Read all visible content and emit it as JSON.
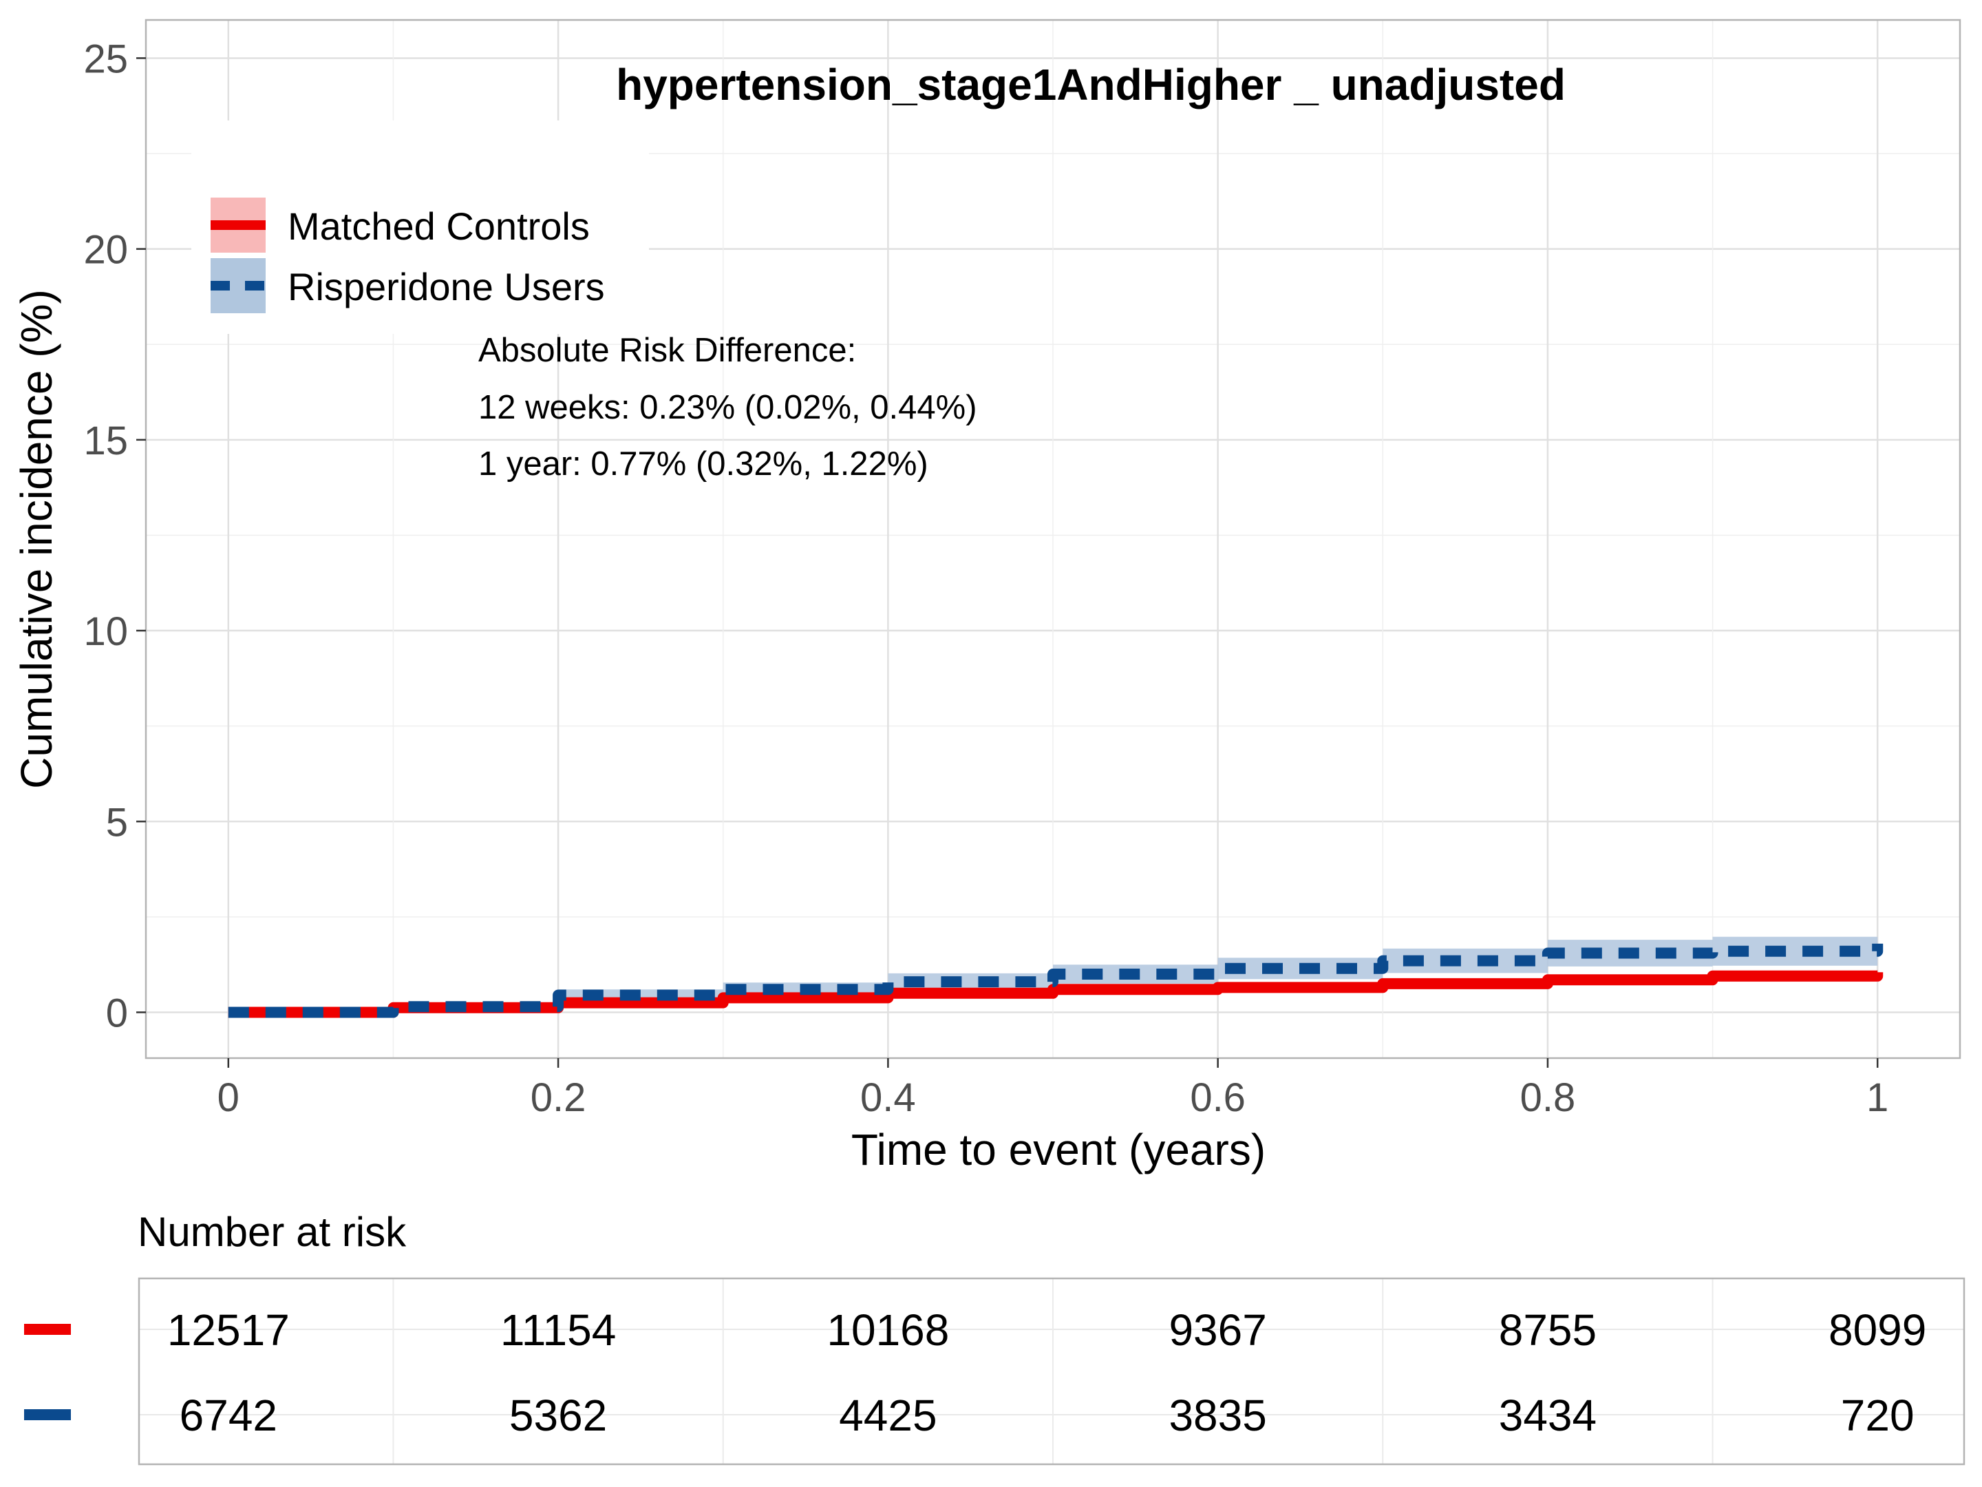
{
  "chart_data": {
    "type": "line",
    "title": "hypertension_stage1AndHigher _ unadjusted",
    "xlabel": "Time to event (years)",
    "ylabel": "Cumulative incidence (%)",
    "xlim": [
      -0.05,
      1.05
    ],
    "ylim": [
      -1.2,
      26
    ],
    "x_ticks": [
      0,
      0.2,
      0.4,
      0.6,
      0.8,
      1
    ],
    "x_tick_labels": [
      "0",
      "0.2",
      "0.4",
      "0.6",
      "0.8",
      "1"
    ],
    "y_ticks": [
      0,
      5,
      10,
      15,
      20,
      25
    ],
    "y_tick_labels": [
      "0",
      "5",
      "10",
      "15",
      "20",
      "25"
    ],
    "grid": true,
    "legend_position": "top-left",
    "series": [
      {
        "name": "Matched Controls",
        "color": "#EE0000",
        "band_color": "#F8B8B8",
        "line_style": "solid",
        "x": [
          0,
          0.1,
          0.2,
          0.3,
          0.4,
          0.5,
          0.6,
          0.7,
          0.8,
          0.9,
          1.0
        ],
        "y": [
          0,
          0.12,
          0.25,
          0.38,
          0.5,
          0.6,
          0.65,
          0.75,
          0.85,
          0.95,
          1.05
        ],
        "lower": [
          0,
          0.06,
          0.17,
          0.29,
          0.4,
          0.49,
          0.53,
          0.62,
          0.71,
          0.8,
          0.88
        ],
        "upper": [
          0,
          0.18,
          0.33,
          0.47,
          0.6,
          0.71,
          0.77,
          0.88,
          0.99,
          1.1,
          1.22
        ]
      },
      {
        "name": "Risperidone Users",
        "color": "#0B4A8E",
        "band_color": "#B0C6DE",
        "line_style": "dashed",
        "x": [
          0,
          0.1,
          0.2,
          0.3,
          0.4,
          0.5,
          0.6,
          0.7,
          0.8,
          0.9,
          1.0
        ],
        "y": [
          0,
          0.15,
          0.45,
          0.6,
          0.8,
          1.0,
          1.15,
          1.35,
          1.55,
          1.6,
          1.8
        ],
        "lower": [
          0,
          0.07,
          0.3,
          0.42,
          0.58,
          0.75,
          0.87,
          1.03,
          1.2,
          1.22,
          1.38
        ],
        "upper": [
          0,
          0.23,
          0.6,
          0.78,
          1.02,
          1.25,
          1.43,
          1.67,
          1.9,
          1.98,
          2.22
        ]
      }
    ],
    "annotation": {
      "heading": "Absolute Risk Difference:",
      "line1": "12 weeks: 0.23% (0.02%, 0.44%)",
      "line2": "1 year: 0.77% (0.32%, 1.22%)"
    },
    "risk_table": {
      "title": "Number at risk",
      "times": [
        0,
        0.2,
        0.4,
        0.6,
        0.8,
        1
      ],
      "rows": [
        {
          "color": "#EE0000",
          "values": [
            "12517",
            "11154",
            "10168",
            "9367",
            "8755",
            "8099"
          ]
        },
        {
          "color": "#0B4A8E",
          "values": [
            "6742",
            "5362",
            "4425",
            "3835",
            "3434",
            "720"
          ]
        }
      ]
    }
  }
}
